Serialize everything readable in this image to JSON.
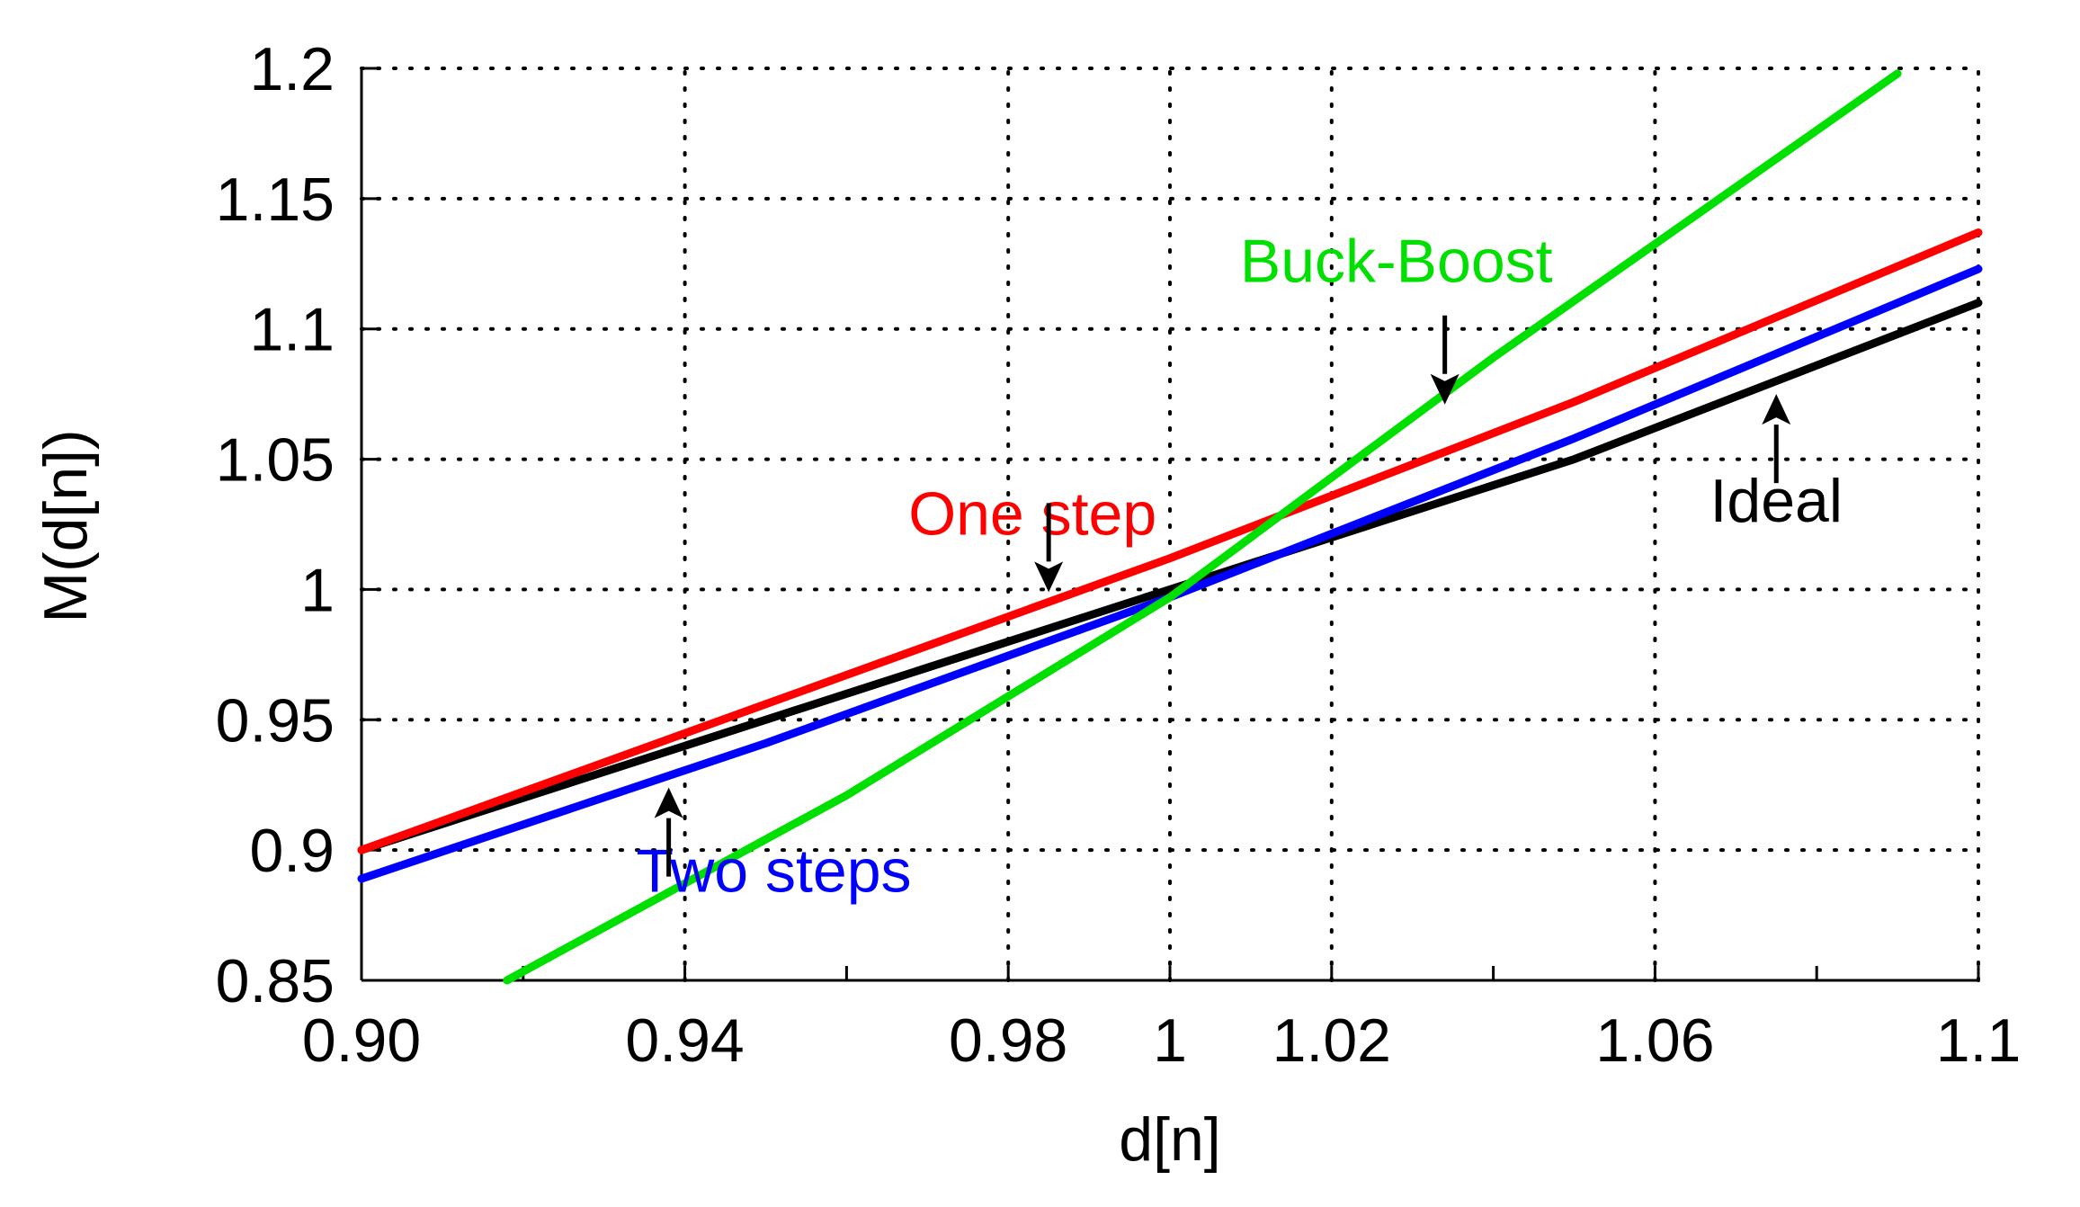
{
  "chart_data": {
    "type": "line",
    "xlabel": "d[n]",
    "ylabel": "M(d[n])",
    "xlim": [
      0.9,
      1.1
    ],
    "ylim": [
      0.85,
      1.2
    ],
    "xticks": [
      0.9,
      0.94,
      0.98,
      1.0,
      1.02,
      1.06,
      1.1
    ],
    "xtick_labels": [
      "0.90",
      "0.94",
      "0.98",
      "1",
      "1.02",
      "1.06",
      "1.1"
    ],
    "x_minor_ticks": [
      0.92,
      0.96,
      1.04,
      1.08
    ],
    "yticks": [
      0.85,
      0.9,
      0.95,
      1.0,
      1.05,
      1.1,
      1.15,
      1.2
    ],
    "ytick_labels": [
      "0.85",
      "0.9",
      "0.95",
      "1",
      "1.05",
      "1.1",
      "1.15",
      "1.2"
    ],
    "grid": "dotted",
    "series": [
      {
        "label_key": "ideal",
        "color": "#000000",
        "x": [
          0.9,
          0.95,
          1.0,
          1.05,
          1.1
        ],
        "y": [
          0.9,
          0.95,
          1.0,
          1.05,
          1.11
        ]
      },
      {
        "label_key": "one_step",
        "color": "#ff0000",
        "x": [
          0.9,
          0.95,
          1.0,
          1.05,
          1.1
        ],
        "y": [
          0.9,
          0.956,
          1.012,
          1.072,
          1.137
        ]
      },
      {
        "label_key": "two_steps",
        "color": "#0000ff",
        "x": [
          0.9,
          0.95,
          1.0,
          1.05,
          1.1
        ],
        "y": [
          0.889,
          0.941,
          0.997,
          1.058,
          1.123
        ]
      },
      {
        "label_key": "buck_boost",
        "color": "#00e000",
        "x": [
          0.918,
          0.96,
          1.0,
          1.04,
          1.09
        ],
        "y": [
          0.85,
          0.921,
          0.997,
          1.089,
          1.198
        ]
      }
    ],
    "annotations": {
      "buck_boost": {
        "text": "Buck-Boost",
        "color": "#00e000",
        "x": 1.028,
        "y": 1.118,
        "arrow_tip": [
          1.034,
          1.071
        ],
        "arrow_dir": "down"
      },
      "ideal": {
        "text": "Ideal",
        "color": "#000000",
        "x": 1.075,
        "y": 1.026,
        "arrow_tip": [
          1.075,
          1.075
        ],
        "arrow_dir": "up"
      },
      "one_step": {
        "text": "One step",
        "color": "#ff0000",
        "x": 0.983,
        "y": 1.021,
        "arrow_tip": [
          0.985,
          0.999
        ],
        "arrow_dir": "down"
      },
      "two_steps": {
        "text": "Two steps",
        "color": "#0000ff",
        "x": 0.951,
        "y": 0.884,
        "arrow_tip": [
          0.938,
          0.924
        ],
        "arrow_dir": "up"
      }
    }
  }
}
